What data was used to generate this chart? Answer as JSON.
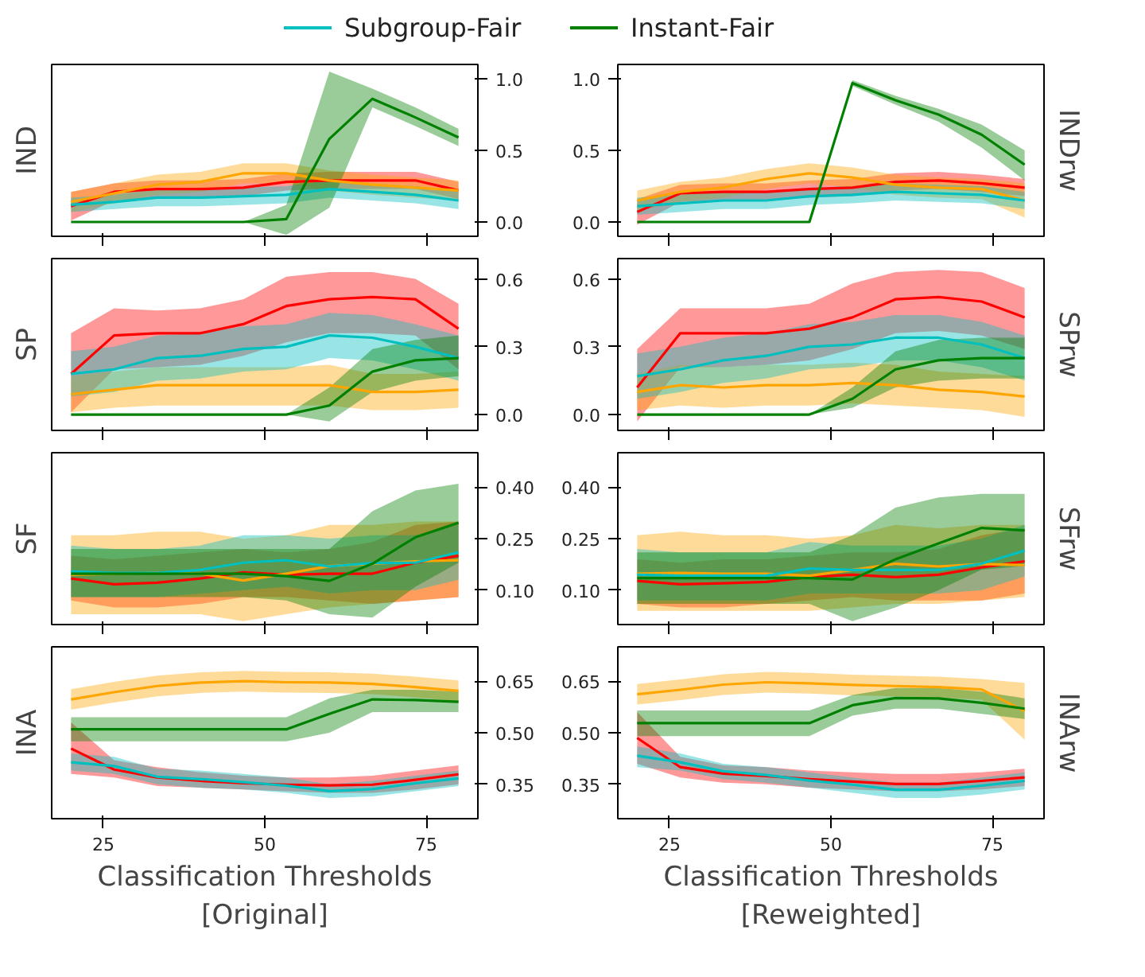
{
  "chart_data": [
    {
      "type": "line",
      "ylabel": "IND",
      "legend": "top",
      "tick_labels": "y",
      "xlim": [
        17,
        83
      ],
      "xticks": [
        25,
        50,
        75
      ],
      "ylim": [
        -0.1,
        1.1
      ],
      "yticks": [
        {
          "value": 0,
          "label": "0.0"
        },
        0.5,
        {
          "value": 1,
          "label": "1.0"
        }
      ],
      "x": [
        20,
        26.67,
        33.33,
        40,
        46.67,
        53.33,
        60,
        66.67,
        73.33,
        80
      ],
      "series": [
        {
          "color": "#ff0000",
          "values": [
            0.11,
            0.21,
            0.23,
            0.23,
            0.24,
            0.28,
            0.29,
            0.29,
            0.29,
            0.22
          ],
          "lower": [
            0.01,
            0.15,
            0.17,
            0.17,
            0.18,
            0.22,
            0.23,
            0.23,
            0.23,
            0.16
          ],
          "upper": [
            0.21,
            0.27,
            0.29,
            0.29,
            0.3,
            0.34,
            0.35,
            0.35,
            0.35,
            0.28
          ]
        },
        {
          "color": "#ffa500",
          "values": [
            0.14,
            0.2,
            0.26,
            0.28,
            0.34,
            0.34,
            0.29,
            0.26,
            0.24,
            0.22
          ],
          "lower": [
            0.07,
            0.13,
            0.19,
            0.21,
            0.27,
            0.27,
            0.22,
            0.19,
            0.17,
            0.15
          ],
          "upper": [
            0.21,
            0.27,
            0.33,
            0.35,
            0.41,
            0.41,
            0.36,
            0.33,
            0.31,
            0.29
          ]
        },
        {
          "name": "Subgroup-Fair",
          "color": "#00bfbf",
          "values": [
            0.12,
            0.14,
            0.17,
            0.17,
            0.18,
            0.19,
            0.23,
            0.21,
            0.19,
            0.15
          ],
          "lower": [
            0.07,
            0.09,
            0.11,
            0.11,
            0.12,
            0.13,
            0.17,
            0.15,
            0.13,
            0.09
          ],
          "upper": [
            0.17,
            0.19,
            0.23,
            0.23,
            0.24,
            0.25,
            0.29,
            0.27,
            0.25,
            0.21
          ]
        },
        {
          "name": "Instant-Fair",
          "color": "#008000",
          "values": [
            0,
            0,
            0,
            0,
            0,
            0.02,
            0.58,
            0.86,
            0.73,
            0.59
          ],
          "lower": [
            0,
            0,
            0,
            0,
            0,
            -0.09,
            0.1,
            0.8,
            0.67,
            0.53
          ],
          "upper": [
            0,
            0,
            0,
            0,
            0,
            0.12,
            1.05,
            0.93,
            0.8,
            0.65
          ]
        }
      ]
    },
    {
      "type": "line",
      "ylabel": "INDrw",
      "tick_labels": "y",
      "xlim": [
        17,
        83
      ],
      "xticks": [
        25,
        50,
        75
      ],
      "ylim": [
        -0.1,
        1.1
      ],
      "yticks": [
        {
          "value": 0,
          "label": "0.0"
        },
        0.5,
        {
          "value": 1,
          "label": "1.0"
        }
      ],
      "x": [
        20,
        26.67,
        33.33,
        40,
        46.67,
        53.33,
        60,
        66.67,
        73.33,
        80
      ],
      "series": [
        {
          "color": "#ff0000",
          "values": [
            0.07,
            0.2,
            0.21,
            0.21,
            0.23,
            0.24,
            0.28,
            0.29,
            0.27,
            0.24
          ],
          "lower": [
            -0.02,
            0.14,
            0.15,
            0.15,
            0.17,
            0.18,
            0.22,
            0.23,
            0.21,
            0.18
          ],
          "upper": [
            0.16,
            0.26,
            0.27,
            0.27,
            0.29,
            0.3,
            0.34,
            0.35,
            0.33,
            0.3
          ]
        },
        {
          "color": "#ffa500",
          "values": [
            0.15,
            0.21,
            0.24,
            0.3,
            0.34,
            0.31,
            0.26,
            0.24,
            0.23,
            0.15
          ],
          "lower": [
            0.08,
            0.14,
            0.17,
            0.23,
            0.27,
            0.24,
            0.19,
            0.17,
            0.16,
            0.03
          ],
          "upper": [
            0.22,
            0.28,
            0.31,
            0.37,
            0.41,
            0.38,
            0.33,
            0.31,
            0.3,
            0.27
          ]
        },
        {
          "color": "#00bfbf",
          "values": [
            0.11,
            0.13,
            0.15,
            0.15,
            0.18,
            0.19,
            0.21,
            0.2,
            0.19,
            0.15
          ],
          "lower": [
            0.05,
            0.07,
            0.09,
            0.09,
            0.12,
            0.13,
            0.15,
            0.14,
            0.13,
            0.09
          ],
          "upper": [
            0.17,
            0.19,
            0.21,
            0.21,
            0.24,
            0.25,
            0.27,
            0.26,
            0.25,
            0.21
          ]
        },
        {
          "color": "#008000",
          "values": [
            0,
            0,
            0,
            0,
            0,
            0.97,
            0.85,
            0.75,
            0.61,
            0.4
          ],
          "lower": [
            0,
            0,
            0,
            0,
            0,
            0.95,
            0.82,
            0.7,
            0.52,
            0.29
          ],
          "upper": [
            0,
            0,
            0,
            0,
            0,
            0.99,
            0.88,
            0.79,
            0.68,
            0.5
          ]
        }
      ]
    },
    {
      "type": "line",
      "ylabel": "SP",
      "tick_labels": "y",
      "xlim": [
        17,
        83
      ],
      "xticks": [
        25,
        50,
        75
      ],
      "ylim": [
        -0.07,
        0.69
      ],
      "yticks": [
        {
          "value": 0,
          "label": "0.0"
        },
        0.3,
        0.6
      ],
      "x": [
        20,
        26.67,
        33.33,
        40,
        46.67,
        53.33,
        60,
        66.67,
        73.33,
        80
      ],
      "series": [
        {
          "color": "#ff0000",
          "values": [
            0.18,
            0.35,
            0.36,
            0.36,
            0.4,
            0.48,
            0.51,
            0.52,
            0.51,
            0.38
          ],
          "lower": [
            0.01,
            0.2,
            0.21,
            0.22,
            0.26,
            0.32,
            0.36,
            0.36,
            0.35,
            0.2
          ],
          "upper": [
            0.36,
            0.47,
            0.46,
            0.47,
            0.51,
            0.61,
            0.63,
            0.63,
            0.6,
            0.49
          ]
        },
        {
          "color": "#ffa500",
          "values": [
            0.09,
            0.11,
            0.13,
            0.13,
            0.13,
            0.13,
            0.13,
            0.1,
            0.1,
            0.11
          ],
          "lower": [
            0.01,
            0.03,
            0.04,
            0.04,
            0.04,
            0.04,
            0.04,
            0.02,
            0.02,
            0.03
          ],
          "upper": [
            0.17,
            0.19,
            0.21,
            0.21,
            0.21,
            0.21,
            0.22,
            0.18,
            0.18,
            0.19
          ]
        },
        {
          "color": "#00bfbf",
          "values": [
            0.18,
            0.2,
            0.25,
            0.26,
            0.29,
            0.3,
            0.35,
            0.34,
            0.3,
            0.25
          ],
          "lower": [
            0.08,
            0.1,
            0.15,
            0.16,
            0.19,
            0.2,
            0.25,
            0.24,
            0.2,
            0.15
          ],
          "upper": [
            0.28,
            0.3,
            0.35,
            0.36,
            0.39,
            0.4,
            0.45,
            0.44,
            0.4,
            0.35
          ]
        },
        {
          "color": "#008000",
          "values": [
            0,
            0,
            0,
            0,
            0,
            0,
            0.04,
            0.19,
            0.24,
            0.25
          ],
          "lower": [
            0,
            0,
            0,
            0,
            0,
            0,
            -0.03,
            0.1,
            0.15,
            0.17
          ],
          "upper": [
            0,
            0,
            0,
            0,
            0,
            0,
            0.12,
            0.29,
            0.33,
            0.35
          ]
        }
      ]
    },
    {
      "type": "line",
      "ylabel": "SPrw",
      "tick_labels": "y",
      "xlim": [
        17,
        83
      ],
      "xticks": [
        25,
        50,
        75
      ],
      "ylim": [
        -0.07,
        0.69
      ],
      "yticks": [
        {
          "value": 0,
          "label": "0.0"
        },
        0.3,
        0.6
      ],
      "x": [
        20,
        26.67,
        33.33,
        40,
        46.67,
        53.33,
        60,
        66.67,
        73.33,
        80
      ],
      "series": [
        {
          "color": "#ff0000",
          "values": [
            0.12,
            0.36,
            0.36,
            0.36,
            0.38,
            0.43,
            0.51,
            0.52,
            0.5,
            0.43
          ],
          "lower": [
            -0.03,
            0.21,
            0.21,
            0.22,
            0.24,
            0.29,
            0.36,
            0.37,
            0.35,
            0.29
          ],
          "upper": [
            0.29,
            0.47,
            0.47,
            0.47,
            0.49,
            0.58,
            0.63,
            0.64,
            0.63,
            0.56
          ]
        },
        {
          "color": "#ffa500",
          "values": [
            0.1,
            0.13,
            0.12,
            0.13,
            0.13,
            0.14,
            0.13,
            0.11,
            0.1,
            0.08
          ],
          "lower": [
            0.02,
            0.04,
            0.03,
            0.04,
            0.04,
            0.05,
            0.04,
            0.03,
            0.02,
            -0.01
          ],
          "upper": [
            0.18,
            0.22,
            0.21,
            0.22,
            0.22,
            0.23,
            0.22,
            0.19,
            0.18,
            0.17
          ]
        },
        {
          "color": "#00bfbf",
          "values": [
            0.17,
            0.2,
            0.24,
            0.26,
            0.3,
            0.31,
            0.34,
            0.34,
            0.31,
            0.25
          ],
          "lower": [
            0.07,
            0.1,
            0.14,
            0.16,
            0.2,
            0.21,
            0.24,
            0.24,
            0.21,
            0.15
          ],
          "upper": [
            0.27,
            0.3,
            0.34,
            0.36,
            0.4,
            0.41,
            0.44,
            0.44,
            0.41,
            0.35
          ]
        },
        {
          "color": "#008000",
          "values": [
            0,
            0,
            0,
            0,
            0,
            0.07,
            0.2,
            0.24,
            0.25,
            0.25
          ],
          "lower": [
            0,
            0,
            0,
            0,
            0,
            0.03,
            0.12,
            0.15,
            0.16,
            0.16
          ],
          "upper": [
            0,
            0,
            0,
            0,
            0,
            0.12,
            0.28,
            0.33,
            0.34,
            0.34
          ]
        }
      ]
    },
    {
      "type": "line",
      "ylabel": "SF",
      "tick_labels": "y",
      "xlim": [
        17,
        83
      ],
      "xticks": [
        25,
        50,
        75
      ],
      "ylim": [
        0.0,
        0.5
      ],
      "yticks": [
        {
          "value": 0.1,
          "label": "0.10"
        },
        0.25,
        {
          "value": 0.4,
          "label": "0.40"
        }
      ],
      "x": [
        20,
        26.67,
        33.33,
        40,
        46.67,
        53.33,
        60,
        66.67,
        73.33,
        80
      ],
      "series": [
        {
          "color": "#ff0000",
          "values": [
            0.134,
            0.117,
            0.122,
            0.134,
            0.152,
            0.145,
            0.148,
            0.148,
            0.18,
            0.2
          ],
          "lower": [
            0.07,
            0.05,
            0.05,
            0.06,
            0.08,
            0.08,
            0.07,
            0.06,
            0.07,
            0.08
          ],
          "upper": [
            0.2,
            0.19,
            0.2,
            0.21,
            0.22,
            0.21,
            0.22,
            0.24,
            0.29,
            0.3
          ]
        },
        {
          "color": "#ffa500",
          "values": [
            0.145,
            0.148,
            0.15,
            0.148,
            0.128,
            0.148,
            0.17,
            0.177,
            0.184,
            0.187
          ],
          "lower": [
            0.03,
            0.03,
            0.03,
            0.03,
            0.01,
            0.03,
            0.05,
            0.06,
            0.07,
            0.08
          ],
          "upper": [
            0.26,
            0.26,
            0.27,
            0.27,
            0.25,
            0.26,
            0.29,
            0.29,
            0.3,
            0.3
          ]
        },
        {
          "color": "#00bfbf",
          "values": [
            0.155,
            0.15,
            0.15,
            0.159,
            0.18,
            0.187,
            0.169,
            0.179,
            0.18,
            0.21
          ],
          "lower": [
            0.08,
            0.08,
            0.08,
            0.09,
            0.1,
            0.11,
            0.09,
            0.1,
            0.1,
            0.13
          ],
          "upper": [
            0.23,
            0.22,
            0.22,
            0.23,
            0.26,
            0.26,
            0.25,
            0.26,
            0.26,
            0.29
          ]
        },
        {
          "color": "#008000",
          "values": [
            0.148,
            0.148,
            0.148,
            0.148,
            0.148,
            0.141,
            0.127,
            0.177,
            0.254,
            0.296
          ],
          "lower": [
            0.08,
            0.08,
            0.08,
            0.08,
            0.08,
            0.07,
            0.03,
            0.02,
            0.11,
            0.18
          ],
          "upper": [
            0.22,
            0.22,
            0.22,
            0.22,
            0.22,
            0.22,
            0.22,
            0.33,
            0.39,
            0.41
          ]
        }
      ]
    },
    {
      "type": "line",
      "ylabel": "SFrw",
      "tick_labels": "y",
      "xlim": [
        17,
        83
      ],
      "xticks": [
        25,
        50,
        75
      ],
      "ylim": [
        0.0,
        0.5
      ],
      "yticks": [
        {
          "value": 0.1,
          "label": "0.10"
        },
        0.25,
        {
          "value": 0.4,
          "label": "0.40"
        }
      ],
      "x": [
        20,
        26.67,
        33.33,
        40,
        46.67,
        53.33,
        60,
        66.67,
        73.33,
        80
      ],
      "series": [
        {
          "color": "#ff0000",
          "values": [
            0.127,
            0.117,
            0.12,
            0.124,
            0.138,
            0.145,
            0.138,
            0.145,
            0.166,
            0.184
          ],
          "lower": [
            0.06,
            0.05,
            0.05,
            0.06,
            0.07,
            0.08,
            0.07,
            0.07,
            0.07,
            0.09
          ],
          "upper": [
            0.19,
            0.18,
            0.19,
            0.19,
            0.2,
            0.21,
            0.21,
            0.22,
            0.26,
            0.28
          ]
        },
        {
          "color": "#ffa500",
          "values": [
            0.148,
            0.15,
            0.148,
            0.148,
            0.142,
            0.159,
            0.177,
            0.169,
            0.176,
            0.173
          ],
          "lower": [
            0.04,
            0.04,
            0.04,
            0.04,
            0.04,
            0.05,
            0.06,
            0.06,
            0.07,
            0.08
          ],
          "upper": [
            0.26,
            0.27,
            0.26,
            0.26,
            0.25,
            0.26,
            0.29,
            0.28,
            0.29,
            0.29
          ]
        },
        {
          "color": "#00bfbf",
          "values": [
            0.145,
            0.142,
            0.142,
            0.142,
            0.163,
            0.159,
            0.159,
            0.159,
            0.177,
            0.215
          ],
          "lower": [
            0.07,
            0.07,
            0.07,
            0.07,
            0.09,
            0.09,
            0.09,
            0.09,
            0.1,
            0.14
          ],
          "upper": [
            0.22,
            0.21,
            0.21,
            0.21,
            0.24,
            0.23,
            0.23,
            0.23,
            0.25,
            0.29
          ]
        },
        {
          "color": "#008000",
          "values": [
            0.135,
            0.135,
            0.135,
            0.135,
            0.135,
            0.131,
            0.19,
            0.236,
            0.281,
            0.274
          ],
          "lower": [
            0.06,
            0.06,
            0.06,
            0.06,
            0.06,
            0.01,
            0.05,
            0.1,
            0.16,
            0.17
          ],
          "upper": [
            0.21,
            0.21,
            0.21,
            0.21,
            0.21,
            0.26,
            0.34,
            0.37,
            0.38,
            0.38
          ]
        }
      ]
    },
    {
      "type": "line",
      "ylabel": "INA",
      "xlabel": "Classification Thresholds\n[Original]",
      "xlim": [
        17,
        83
      ],
      "xticks": [
        25,
        50,
        75
      ],
      "ylim": [
        0.25,
        0.75
      ],
      "yticks": [
        0.35,
        {
          "value": 0.5,
          "label": "0.50"
        },
        0.65
      ],
      "x": [
        20,
        26.67,
        33.33,
        40,
        46.67,
        53.33,
        60,
        66.67,
        73.33,
        80
      ],
      "series": [
        {
          "color": "#ff0000",
          "values": [
            0.454,
            0.393,
            0.37,
            0.36,
            0.353,
            0.349,
            0.347,
            0.349,
            0.363,
            0.379
          ],
          "lower": [
            0.38,
            0.37,
            0.345,
            0.34,
            0.335,
            0.33,
            0.325,
            0.325,
            0.335,
            0.35
          ],
          "upper": [
            0.53,
            0.42,
            0.4,
            0.385,
            0.375,
            0.37,
            0.37,
            0.375,
            0.39,
            0.405
          ]
        },
        {
          "color": "#ffa500",
          "values": [
            0.597,
            0.618,
            0.636,
            0.646,
            0.65,
            0.647,
            0.646,
            0.642,
            0.633,
            0.622
          ],
          "lower": [
            0.567,
            0.588,
            0.606,
            0.616,
            0.62,
            0.617,
            0.616,
            0.612,
            0.603,
            0.592
          ],
          "upper": [
            0.627,
            0.648,
            0.666,
            0.676,
            0.68,
            0.677,
            0.676,
            0.672,
            0.663,
            0.652
          ]
        },
        {
          "color": "#00bfbf",
          "values": [
            0.414,
            0.403,
            0.372,
            0.365,
            0.356,
            0.346,
            0.33,
            0.336,
            0.353,
            0.367
          ],
          "lower": [
            0.39,
            0.38,
            0.35,
            0.34,
            0.335,
            0.325,
            0.31,
            0.315,
            0.33,
            0.345
          ],
          "upper": [
            0.44,
            0.43,
            0.395,
            0.39,
            0.38,
            0.37,
            0.35,
            0.36,
            0.375,
            0.39
          ]
        },
        {
          "color": "#008000",
          "values": [
            0.51,
            0.51,
            0.51,
            0.51,
            0.51,
            0.51,
            0.555,
            0.597,
            0.595,
            0.59
          ],
          "lower": [
            0.475,
            0.475,
            0.475,
            0.475,
            0.475,
            0.475,
            0.5,
            0.56,
            0.56,
            0.56
          ],
          "upper": [
            0.545,
            0.545,
            0.545,
            0.545,
            0.545,
            0.545,
            0.6,
            0.625,
            0.625,
            0.62
          ]
        }
      ]
    },
    {
      "type": "line",
      "ylabel": "INArw",
      "xlabel": "Classification Thresholds\n[Reweighted]",
      "xlim": [
        17,
        83
      ],
      "xticks": [
        25,
        50,
        75
      ],
      "ylim": [
        0.25,
        0.75
      ],
      "yticks": [
        0.35,
        {
          "value": 0.5,
          "label": "0.50"
        },
        0.65
      ],
      "x": [
        20,
        26.67,
        33.33,
        40,
        46.67,
        53.33,
        60,
        66.67,
        73.33,
        80
      ],
      "series": [
        {
          "color": "#ff0000",
          "values": [
            0.485,
            0.4,
            0.381,
            0.374,
            0.365,
            0.358,
            0.351,
            0.351,
            0.36,
            0.37
          ],
          "lower": [
            0.41,
            0.37,
            0.355,
            0.35,
            0.34,
            0.335,
            0.33,
            0.33,
            0.335,
            0.345
          ],
          "upper": [
            0.56,
            0.43,
            0.405,
            0.4,
            0.39,
            0.385,
            0.38,
            0.38,
            0.385,
            0.395
          ]
        },
        {
          "color": "#ffa500",
          "values": [
            0.612,
            0.625,
            0.64,
            0.647,
            0.644,
            0.639,
            0.636,
            0.633,
            0.626,
            0.563
          ],
          "lower": [
            0.582,
            0.595,
            0.61,
            0.617,
            0.614,
            0.609,
            0.606,
            0.603,
            0.596,
            0.48
          ],
          "upper": [
            0.642,
            0.655,
            0.67,
            0.677,
            0.674,
            0.669,
            0.666,
            0.663,
            0.656,
            0.645
          ]
        },
        {
          "color": "#00bfbf",
          "values": [
            0.433,
            0.414,
            0.388,
            0.377,
            0.361,
            0.349,
            0.334,
            0.334,
            0.346,
            0.36
          ],
          "lower": [
            0.4,
            0.39,
            0.365,
            0.355,
            0.34,
            0.325,
            0.31,
            0.31,
            0.32,
            0.335
          ],
          "upper": [
            0.46,
            0.44,
            0.41,
            0.4,
            0.385,
            0.37,
            0.355,
            0.355,
            0.37,
            0.385
          ]
        },
        {
          "color": "#008000",
          "values": [
            0.528,
            0.528,
            0.528,
            0.528,
            0.528,
            0.58,
            0.601,
            0.6,
            0.587,
            0.57
          ],
          "lower": [
            0.49,
            0.49,
            0.49,
            0.49,
            0.49,
            0.55,
            0.57,
            0.57,
            0.555,
            0.54
          ],
          "upper": [
            0.565,
            0.565,
            0.565,
            0.565,
            0.565,
            0.61,
            0.63,
            0.63,
            0.62,
            0.6
          ]
        }
      ]
    }
  ]
}
